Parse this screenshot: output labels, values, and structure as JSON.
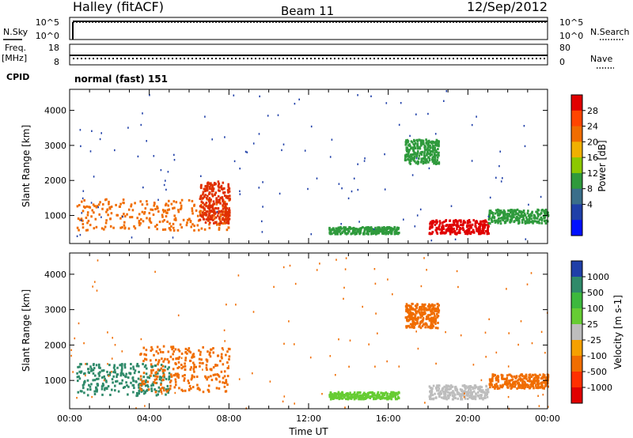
{
  "header": {
    "title": "Halley (fitACF)",
    "beam": "Beam 11",
    "date": "12/Sep/2012"
  },
  "top_panels": {
    "nsky_label": "N.Sky",
    "nsearch_label": "N.Search",
    "noise_ticks_left": [
      "10^5",
      "10^0"
    ],
    "noise_ticks_right": [
      "10^5",
      "10^0"
    ],
    "freq_label": "Freq.",
    "freq_unit": "[MHz]",
    "freq_ticks": [
      "18",
      "8"
    ],
    "nave_label": "Nave",
    "nave_ticks": [
      "80",
      "0"
    ],
    "cpid_label": "CPID",
    "cpid_value": "normal (fast) 151"
  },
  "chart_data": [
    {
      "type": "heatmap",
      "name": "power",
      "ylabel": "Slant Range [km]",
      "yticks": [
        1000,
        2000,
        3000,
        4000
      ],
      "ylim": [
        200,
        4600
      ],
      "xlim": [
        0,
        24
      ],
      "colorbar": {
        "label": "Power [dB]",
        "ticks": [
          "28",
          "24",
          "20",
          "16",
          "12",
          "8",
          "4"
        ],
        "colors": [
          "#e00000",
          "#ff4500",
          "#f06d00",
          "#f0b000",
          "#8cc800",
          "#2f9a3c",
          "#3a6e8a",
          "#1f3fa8",
          "#0010ff"
        ]
      },
      "regions": [
        {
          "t": [
            0.3,
            8.0
          ],
          "r": [
            600,
            1500
          ],
          "color": "#f06d00"
        },
        {
          "t": [
            6.5,
            8.0
          ],
          "r": [
            800,
            2000
          ],
          "color": "#e03000"
        },
        {
          "t": [
            13.0,
            16.5
          ],
          "r": [
            500,
            700
          ],
          "color": "#2f9a3c"
        },
        {
          "t": [
            18.0,
            21.0
          ],
          "r": [
            500,
            900
          ],
          "color": "#e00000"
        },
        {
          "t": [
            16.8,
            18.5
          ],
          "r": [
            2500,
            3200
          ],
          "color": "#2f9a3c"
        },
        {
          "t": [
            21.0,
            24.0
          ],
          "r": [
            800,
            1200
          ],
          "color": "#2f9a3c"
        }
      ]
    },
    {
      "type": "heatmap",
      "name": "velocity",
      "ylabel": "Slant Range [km]",
      "yticks": [
        1000,
        2000,
        3000,
        4000
      ],
      "ylim": [
        200,
        4600
      ],
      "xlim": [
        0,
        24
      ],
      "xticks": [
        "00:00",
        "04:00",
        "08:00",
        "12:00",
        "16:00",
        "20:00",
        "00:00"
      ],
      "xlabel": "Time UT",
      "colorbar": {
        "label": "Velocity [m s-1]",
        "ticks": [
          "1000",
          "500",
          "100",
          "25",
          "-25",
          "-100",
          "-500",
          "-1000"
        ],
        "colors": [
          "#1f3fa8",
          "#2f8a6a",
          "#3db83d",
          "#66cc33",
          "#bdbdbd",
          "#f5a000",
          "#f06d00",
          "#ff3000",
          "#e00000"
        ]
      },
      "regions": [
        {
          "t": [
            0.3,
            5.0
          ],
          "r": [
            600,
            1500
          ],
          "color": "#2f8a6a"
        },
        {
          "t": [
            3.5,
            8.0
          ],
          "r": [
            700,
            2000
          ],
          "color": "#f06d00"
        },
        {
          "t": [
            13.0,
            16.5
          ],
          "r": [
            500,
            700
          ],
          "color": "#66cc33"
        },
        {
          "t": [
            18.0,
            21.0
          ],
          "r": [
            500,
            900
          ],
          "color": "#bdbdbd"
        },
        {
          "t": [
            16.8,
            18.5
          ],
          "r": [
            2500,
            3200
          ],
          "color": "#f06d00"
        },
        {
          "t": [
            21.0,
            24.0
          ],
          "r": [
            800,
            1200
          ],
          "color": "#f06d00"
        }
      ]
    }
  ]
}
